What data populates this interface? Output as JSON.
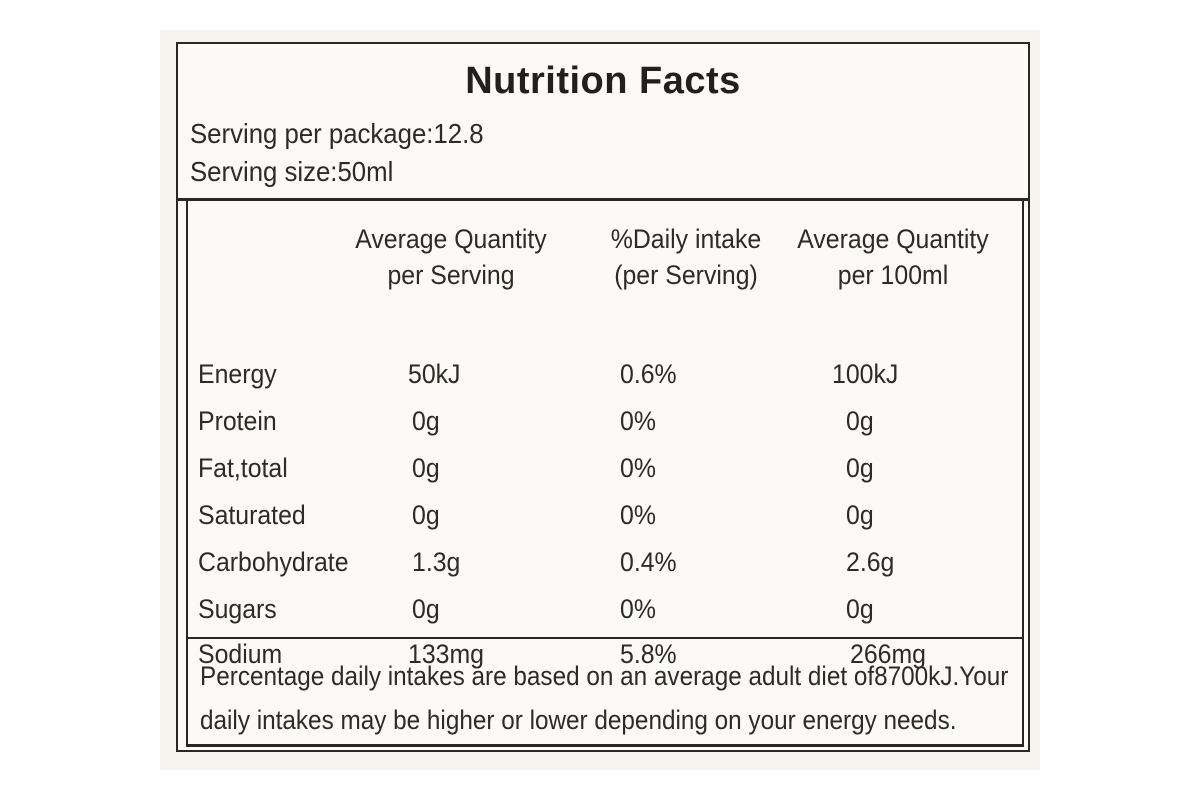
{
  "label": {
    "title": "Nutrition Facts",
    "serving_per_package": "Serving per package:12.8",
    "serving_size": "Serving size:50ml"
  },
  "columns": {
    "per_serving": [
      "Average Quantity",
      "per Serving"
    ],
    "daily_intake": [
      "%Daily intake",
      "(per Serving)"
    ],
    "per_100ml": [
      "Average Quantity",
      "per 100ml"
    ]
  },
  "rows": [
    {
      "name": "Energy",
      "per_serving": "50kJ",
      "daily_intake": "0.6%",
      "per_100ml": "100kJ"
    },
    {
      "name": "Protein",
      "per_serving": "0g",
      "daily_intake": "0%",
      "per_100ml": "0g"
    },
    {
      "name": "Fat,total",
      "per_serving": "0g",
      "daily_intake": "0%",
      "per_100ml": "0g"
    },
    {
      "name": "Saturated",
      "per_serving": "0g",
      "daily_intake": "0%",
      "per_100ml": "0g"
    },
    {
      "name": "Carbohydrate",
      "per_serving": "1.3g",
      "daily_intake": "0.4%",
      "per_100ml": "2.6g"
    },
    {
      "name": "Sugars",
      "per_serving": "0g",
      "daily_intake": "0%",
      "per_100ml": "0g"
    },
    {
      "name": "Sodium",
      "per_serving": "133mg",
      "daily_intake": "5.8%",
      "per_100ml": "266mg"
    }
  ],
  "footnote": {
    "line1": "Percentage daily intakes are based on an average adult diet of8700kJ.Your",
    "line2": "daily intakes may be higher or lower depending on your energy needs."
  }
}
